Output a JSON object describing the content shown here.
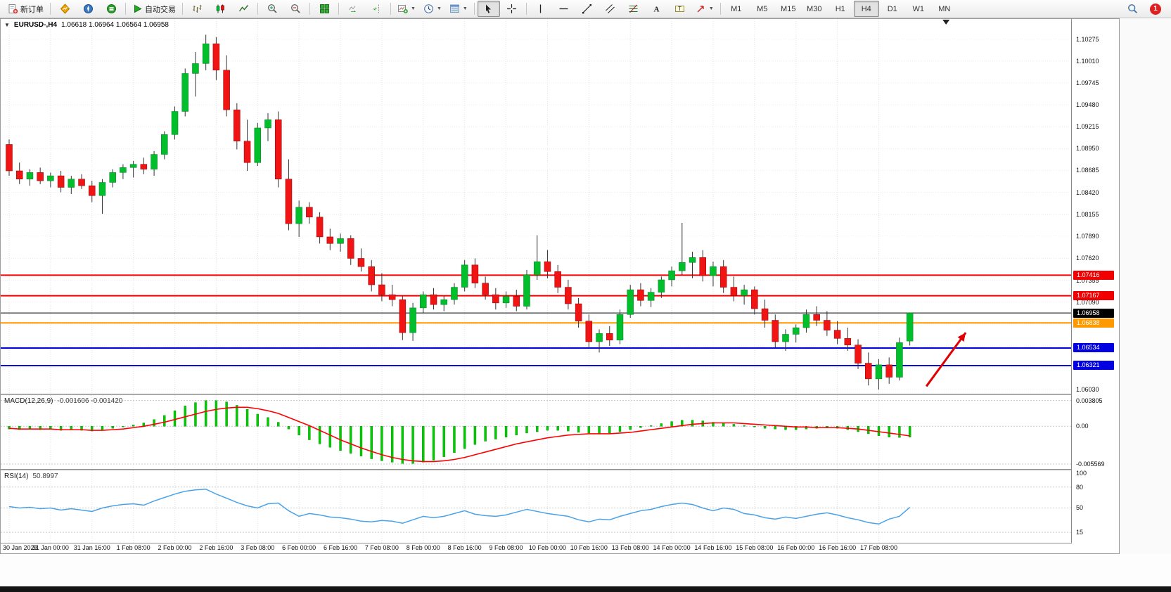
{
  "toolbar": {
    "new_order": "新订单",
    "autotrading": "自动交易",
    "timeframes": [
      "M1",
      "M5",
      "M15",
      "M30",
      "H1",
      "H4",
      "D1",
      "W1",
      "MN"
    ],
    "active_timeframe": "H4",
    "notification_count": "1",
    "icons": [
      "new-order",
      "market-watch",
      "navigator",
      "terminal",
      "autotrading",
      "bar-chart",
      "candlestick-chart",
      "line-chart",
      "zoom-in",
      "zoom-out",
      "tile-windows",
      "auto-scroll",
      "chart-shift",
      "new-chart",
      "periods",
      "templates",
      "cursor",
      "crosshair",
      "vertical-line",
      "horizontal-line",
      "trendline",
      "equidistant-channel",
      "fibonacci",
      "text",
      "text-label",
      "arrows",
      "search",
      "notification"
    ]
  },
  "chart": {
    "title": "EURUSD-,H4",
    "ohlc": "1.06618 1.06964 1.06564 1.06958",
    "macd_label": "MACD(12,26,9)",
    "macd_values": "-0.001606 -0.001420",
    "rsi_label": "RSI(14)",
    "rsi_value": "50.8997"
  },
  "chart_data": [
    {
      "type": "candlestick",
      "symbol": "EURUSD-",
      "timeframe": "H4",
      "x_label_step": 4,
      "x_labels": [
        "30 Jan 2023",
        "31 Jan 00:00",
        "31 Jan 16:00",
        "1 Feb 08:00",
        "2 Feb 00:00",
        "2 Feb 16:00",
        "3 Feb 08:00",
        "6 Feb 00:00",
        "6 Feb 16:00",
        "7 Feb 08:00",
        "8 Feb 00:00",
        "8 Feb 16:00",
        "9 Feb 08:00",
        "10 Feb 00:00",
        "10 Feb 16:00",
        "13 Feb 08:00",
        "14 Feb 00:00",
        "14 Feb 16:00",
        "15 Feb 08:00",
        "16 Feb 00:00",
        "16 Feb 16:00",
        "17 Feb 08:00"
      ],
      "y_ticks": [
        "1.10275",
        "1.10010",
        "1.09745",
        "1.09480",
        "1.09215",
        "1.08950",
        "1.08685",
        "1.08420",
        "1.08155",
        "1.07890",
        "1.07620",
        "1.07355",
        "1.07090",
        "1.06825",
        "1.06560",
        "1.06295",
        "1.06030"
      ],
      "y_range": [
        1.0598,
        1.1052
      ],
      "up_color": "#00bf2a",
      "down_color": "#f01414",
      "wick_color": "#333333",
      "levels": [
        {
          "price": 1.07416,
          "label": "1.07416",
          "color": "#f00000",
          "width": 2
        },
        {
          "price": 1.07167,
          "label": "1.07167",
          "color": "#f00000",
          "width": 2
        },
        {
          "price": 1.06958,
          "label": "1.06958",
          "color": "#000000",
          "width": 1
        },
        {
          "price": 1.06838,
          "label": "1.06838",
          "color": "#ff9900",
          "width": 2
        },
        {
          "price": 1.06534,
          "label": "1.06534",
          "color": "#0000e0",
          "width": 2
        },
        {
          "price": 1.06321,
          "label": "1.06321",
          "color": "#0000e0",
          "width": 2
        }
      ],
      "annotations": [
        {
          "type": "arrow",
          "color": "#e00000",
          "from": [
            88.6,
            1.0607
          ],
          "to": [
            92.4,
            1.0672
          ]
        }
      ],
      "shift_marker_index": 90.5,
      "candles": [
        [
          1.09,
          1.0906,
          1.0862,
          1.0868
        ],
        [
          1.0868,
          1.0878,
          1.0852,
          1.0858
        ],
        [
          1.0858,
          1.087,
          1.085,
          1.0866
        ],
        [
          1.0866,
          1.0872,
          1.0852,
          1.0856
        ],
        [
          1.0856,
          1.0866,
          1.0848,
          1.0862
        ],
        [
          1.0862,
          1.0868,
          1.0842,
          1.0848
        ],
        [
          1.0848,
          1.0862,
          1.084,
          1.0858
        ],
        [
          1.0858,
          1.0864,
          1.0846,
          1.085
        ],
        [
          1.085,
          1.0856,
          1.083,
          1.0838
        ],
        [
          1.0838,
          1.0858,
          1.0816,
          1.0854
        ],
        [
          1.0854,
          1.087,
          1.0848,
          1.0866
        ],
        [
          1.0866,
          1.0876,
          1.0858,
          1.0872
        ],
        [
          1.0872,
          1.088,
          1.086,
          1.0876
        ],
        [
          1.0876,
          1.0884,
          1.0864,
          1.087
        ],
        [
          1.087,
          1.0892,
          1.0862,
          1.0888
        ],
        [
          1.0888,
          1.0916,
          1.0882,
          1.0912
        ],
        [
          1.0912,
          1.0946,
          1.0906,
          1.094
        ],
        [
          1.094,
          1.0992,
          1.0934,
          1.0986
        ],
        [
          1.0986,
          1.1012,
          1.0958,
          1.0998
        ],
        [
          1.0998,
          1.1033,
          1.099,
          1.1022
        ],
        [
          1.1022,
          1.103,
          1.0978,
          1.099
        ],
        [
          1.099,
          1.1008,
          1.0934,
          1.0942
        ],
        [
          1.0942,
          1.095,
          1.0894,
          1.0904
        ],
        [
          1.0904,
          1.093,
          1.0868,
          1.0878
        ],
        [
          1.0878,
          1.0926,
          1.0874,
          1.092
        ],
        [
          1.092,
          1.0938,
          1.0904,
          1.093
        ],
        [
          1.093,
          1.094,
          1.0848,
          1.0858
        ],
        [
          1.0858,
          1.0882,
          1.0796,
          1.0804
        ],
        [
          1.0804,
          1.0832,
          1.0788,
          1.0824
        ],
        [
          1.0824,
          1.083,
          1.0804,
          1.0812
        ],
        [
          1.0812,
          1.0818,
          1.078,
          1.0788
        ],
        [
          1.0788,
          1.0798,
          1.0772,
          1.078
        ],
        [
          1.078,
          1.0792,
          1.077,
          1.0786
        ],
        [
          1.0786,
          1.079,
          1.0754,
          1.0762
        ],
        [
          1.0762,
          1.0774,
          1.0746,
          1.0752
        ],
        [
          1.0752,
          1.076,
          1.0722,
          1.073
        ],
        [
          1.073,
          1.0744,
          1.071,
          1.0718
        ],
        [
          1.0718,
          1.073,
          1.0704,
          1.0712
        ],
        [
          1.0712,
          1.0716,
          1.0663,
          1.0672
        ],
        [
          1.0672,
          1.0708,
          1.0662,
          1.0702
        ],
        [
          1.0702,
          1.0722,
          1.0696,
          1.0718
        ],
        [
          1.0718,
          1.0726,
          1.07,
          1.0706
        ],
        [
          1.0706,
          1.0716,
          1.0698,
          1.0712
        ],
        [
          1.0712,
          1.0732,
          1.0706,
          1.0727
        ],
        [
          1.0727,
          1.076,
          1.0722,
          1.0754
        ],
        [
          1.0754,
          1.0762,
          1.0726,
          1.0732
        ],
        [
          1.0732,
          1.074,
          1.0712,
          1.0718
        ],
        [
          1.0718,
          1.0726,
          1.07,
          1.0708
        ],
        [
          1.0708,
          1.0722,
          1.0702,
          1.0716
        ],
        [
          1.0716,
          1.0724,
          1.0698,
          1.0704
        ],
        [
          1.0704,
          1.0748,
          1.07,
          1.0742
        ],
        [
          1.0742,
          1.079,
          1.0736,
          1.0758
        ],
        [
          1.0758,
          1.0772,
          1.0738,
          1.0746
        ],
        [
          1.0746,
          1.0754,
          1.072,
          1.0727
        ],
        [
          1.0727,
          1.0736,
          1.07,
          1.0707
        ],
        [
          1.0707,
          1.0714,
          1.0678,
          1.0686
        ],
        [
          1.0686,
          1.0694,
          1.0654,
          1.0661
        ],
        [
          1.0661,
          1.0676,
          1.0648,
          1.0671
        ],
        [
          1.0671,
          1.068,
          1.0656,
          1.0663
        ],
        [
          1.0663,
          1.07,
          1.0658,
          1.0694
        ],
        [
          1.0694,
          1.073,
          1.069,
          1.0724
        ],
        [
          1.0724,
          1.0732,
          1.0704,
          1.0711
        ],
        [
          1.0711,
          1.0726,
          1.0703,
          1.0721
        ],
        [
          1.0721,
          1.074,
          1.0714,
          1.0736
        ],
        [
          1.0736,
          1.0752,
          1.0728,
          1.0747
        ],
        [
          1.0747,
          1.0805,
          1.0742,
          1.0757
        ],
        [
          1.0757,
          1.077,
          1.0738,
          1.0763
        ],
        [
          1.0763,
          1.0772,
          1.0734,
          1.0741
        ],
        [
          1.0741,
          1.0758,
          1.0728,
          1.0752
        ],
        [
          1.0752,
          1.076,
          1.072,
          1.0727
        ],
        [
          1.0727,
          1.074,
          1.071,
          1.0717
        ],
        [
          1.0717,
          1.073,
          1.0706,
          1.0724
        ],
        [
          1.0724,
          1.0728,
          1.0694,
          1.0701
        ],
        [
          1.0701,
          1.0712,
          1.0678,
          1.0687
        ],
        [
          1.0687,
          1.0694,
          1.0654,
          1.0661
        ],
        [
          1.0661,
          1.0676,
          1.065,
          1.067
        ],
        [
          1.067,
          1.0682,
          1.066,
          1.0678
        ],
        [
          1.0678,
          1.07,
          1.0672,
          1.0694
        ],
        [
          1.0694,
          1.0704,
          1.068,
          1.0687
        ],
        [
          1.0687,
          1.0698,
          1.0668,
          1.0675
        ],
        [
          1.0675,
          1.0686,
          1.0658,
          1.0665
        ],
        [
          1.0665,
          1.0678,
          1.065,
          1.0657
        ],
        [
          1.0657,
          1.0664,
          1.0628,
          1.0635
        ],
        [
          1.0635,
          1.0648,
          1.0608,
          1.0616
        ],
        [
          1.0616,
          1.064,
          1.0603,
          1.0633
        ],
        [
          1.0633,
          1.0642,
          1.061,
          1.0618
        ],
        [
          1.0618,
          1.0666,
          1.0614,
          1.066
        ],
        [
          1.06618,
          1.06964,
          1.06564,
          1.06958
        ]
      ]
    },
    {
      "type": "bar",
      "title": "MACD(12,26,9)",
      "current_values": [
        -0.001606,
        -0.00142
      ],
      "bar_color": "#00cc00",
      "y_ticks": [
        "0.003805",
        "0.00",
        "-0.005569"
      ],
      "y_range": [
        -0.0063,
        0.0046
      ],
      "values": [
        -0.0004,
        -0.0005,
        -0.0004,
        -0.0005,
        -0.0004,
        -0.0006,
        -0.0005,
        -0.0006,
        -0.0007,
        -0.0005,
        -0.0003,
        -0.0001,
        0.0002,
        0.0005,
        0.001,
        0.0016,
        0.0023,
        0.003,
        0.0035,
        0.0038,
        0.0038,
        0.0036,
        0.0031,
        0.0025,
        0.0018,
        0.0013,
        0.0006,
        -0.0004,
        -0.0013,
        -0.002,
        -0.0026,
        -0.0031,
        -0.0036,
        -0.004,
        -0.0044,
        -0.0048,
        -0.0051,
        -0.0053,
        -0.0055,
        -0.0055,
        -0.0053,
        -0.005,
        -0.0045,
        -0.0039,
        -0.0033,
        -0.0027,
        -0.0022,
        -0.0019,
        -0.0016,
        -0.0013,
        -0.001,
        -0.0008,
        -0.0006,
        -0.0006,
        -0.0007,
        -0.0009,
        -0.001,
        -0.0011,
        -0.001,
        -0.0008,
        -0.0005,
        -0.0002,
        0.0001,
        0.0004,
        0.0007,
        0.0009,
        0.0009,
        0.0008,
        0.0006,
        0.0005,
        0.0003,
        0.0001,
        -0.0001,
        -0.0003,
        -0.0004,
        -0.0005,
        -0.0005,
        -0.0004,
        -0.0003,
        -0.0002,
        -0.0003,
        -0.0005,
        -0.0008,
        -0.0011,
        -0.0014,
        -0.0016,
        -0.00165,
        -0.001606
      ],
      "series": [
        {
          "name": "signal",
          "type": "line",
          "color": "#ff0000",
          "values": [
            -0.0003,
            -0.0004,
            -0.0004,
            -0.0004,
            -0.0004,
            -0.0005,
            -0.0005,
            -0.0005,
            -0.0006,
            -0.0006,
            -0.0005,
            -0.0004,
            -0.0002,
            0.0,
            0.0003,
            0.0006,
            0.001,
            0.0014,
            0.0018,
            0.0022,
            0.0025,
            0.0027,
            0.0028,
            0.0028,
            0.0026,
            0.0023,
            0.0019,
            0.0013,
            0.0007,
            0.0001,
            -0.0006,
            -0.0013,
            -0.002,
            -0.0026,
            -0.0032,
            -0.0037,
            -0.0042,
            -0.0046,
            -0.0049,
            -0.0051,
            -0.0052,
            -0.0052,
            -0.0051,
            -0.0049,
            -0.0046,
            -0.0042,
            -0.0038,
            -0.0034,
            -0.003,
            -0.0026,
            -0.0023,
            -0.002,
            -0.0017,
            -0.0015,
            -0.0013,
            -0.0012,
            -0.0011,
            -0.0011,
            -0.0011,
            -0.001,
            -0.0009,
            -0.0007,
            -0.0005,
            -0.0003,
            -0.0001,
            0.0001,
            0.0003,
            0.0004,
            0.0005,
            0.0005,
            0.0005,
            0.0004,
            0.0003,
            0.0002,
            0.0001,
            0.0,
            -0.0001,
            -0.0001,
            -0.0002,
            -0.0002,
            -0.0002,
            -0.0003,
            -0.0004,
            -0.0006,
            -0.0008,
            -0.001,
            -0.0012,
            -0.00142
          ]
        }
      ]
    },
    {
      "type": "line",
      "title": "RSI(14)",
      "current_value": 50.8997,
      "color": "#4aa2e8",
      "levels": [
        80,
        50,
        15
      ],
      "y_ticks": [
        "100",
        "80",
        "50",
        "15"
      ],
      "y_range": [
        0,
        104
      ],
      "values": [
        52,
        50,
        51,
        49,
        50,
        47,
        49,
        47,
        45,
        50,
        53,
        55,
        56,
        54,
        60,
        65,
        70,
        74,
        76,
        77,
        70,
        64,
        58,
        53,
        50,
        56,
        57,
        46,
        38,
        42,
        40,
        37,
        36,
        34,
        31,
        30,
        32,
        31,
        28,
        33,
        38,
        36,
        38,
        42,
        46,
        41,
        39,
        38,
        40,
        44,
        48,
        45,
        42,
        40,
        38,
        33,
        30,
        34,
        33,
        38,
        42,
        46,
        48,
        52,
        55,
        57,
        55,
        50,
        46,
        50,
        48,
        42,
        40,
        36,
        34,
        37,
        35,
        38,
        41,
        43,
        40,
        36,
        33,
        29,
        27,
        34,
        38,
        50.8997
      ]
    }
  ]
}
